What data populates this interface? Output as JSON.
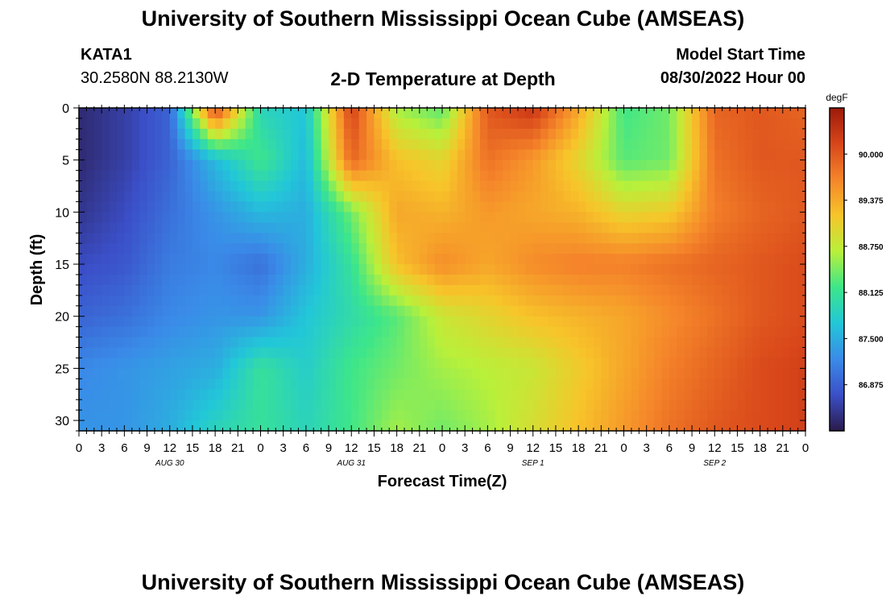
{
  "header": {
    "title_top": "University of Southern Mississippi Ocean Cube (AMSEAS)",
    "title_bottom": "University of Southern Mississippi Ocean Cube (AMSEAS)",
    "station": "KATA1",
    "coords": "30.2580N  88.2130W",
    "subtitle": "2-D Temperature at Depth",
    "model_start_label": "Model Start Time",
    "model_start_value": "08/30/2022 Hour 00"
  },
  "chart_data": {
    "type": "heatmap",
    "title": "2-D Temperature at Depth",
    "xlabel": "Forecast Time(Z)",
    "ylabel": "Depth (ft)",
    "units": "degF",
    "x_hours": [
      0,
      6,
      12,
      18,
      24,
      30,
      36,
      42,
      48,
      54,
      60,
      66,
      72,
      78,
      84,
      90,
      96
    ],
    "y_depths": [
      0,
      5,
      10,
      15,
      20,
      25,
      31
    ],
    "z": [
      [
        86.4,
        86.6,
        86.9,
        90.2,
        87.9,
        87.7,
        90.2,
        88.6,
        88.3,
        90.0,
        90.3,
        89.4,
        88.2,
        88.4,
        89.9,
        90.0,
        89.9
      ],
      [
        86.4,
        86.6,
        86.9,
        87.6,
        88.2,
        87.6,
        89.9,
        89.2,
        89.0,
        89.8,
        89.5,
        89.0,
        88.3,
        88.4,
        89.8,
        90.0,
        90.0
      ],
      [
        86.5,
        86.7,
        87.0,
        87.3,
        87.6,
        87.5,
        88.4,
        89.4,
        89.3,
        89.5,
        89.4,
        89.3,
        89.0,
        89.1,
        89.7,
        89.9,
        90.0
      ],
      [
        86.7,
        86.8,
        87.1,
        87.2,
        87.0,
        87.5,
        88.1,
        89.2,
        89.6,
        89.4,
        89.6,
        89.7,
        89.7,
        89.8,
        89.9,
        90.0,
        90.1
      ],
      [
        86.9,
        87.0,
        87.2,
        87.3,
        87.3,
        87.7,
        88.0,
        88.3,
        88.8,
        89.0,
        89.2,
        89.3,
        89.4,
        89.6,
        89.8,
        90.0,
        90.1
      ],
      [
        87.2,
        87.3,
        87.4,
        87.5,
        88.1,
        87.8,
        88.2,
        88.4,
        88.6,
        88.7,
        88.8,
        89.1,
        89.4,
        89.7,
        89.9,
        90.1,
        90.2
      ],
      [
        87.3,
        87.3,
        87.5,
        87.9,
        88.1,
        87.9,
        88.2,
        88.6,
        88.4,
        88.6,
        88.9,
        89.2,
        89.5,
        89.8,
        90.0,
        90.1,
        90.2
      ]
    ],
    "xlim": [
      0,
      96
    ],
    "ylim": [
      31,
      0
    ],
    "x_tick_labels": [
      "0",
      "3",
      "6",
      "9",
      "12",
      "15",
      "18",
      "21",
      "0",
      "3",
      "6",
      "9",
      "12",
      "15",
      "18",
      "21",
      "0",
      "3",
      "6",
      "9",
      "12",
      "15",
      "18",
      "21",
      "0",
      "3",
      "6",
      "9",
      "12",
      "15",
      "18",
      "21",
      "0"
    ],
    "date_labels": [
      "AUG 30",
      "AUG 31",
      "SEP 1",
      "SEP 2"
    ],
    "y_ticks": [
      0,
      5,
      10,
      15,
      20,
      25,
      30
    ],
    "colorbar": {
      "label": "degF",
      "min": 86.25,
      "max": 90.625,
      "ticks": [
        "90.000",
        "89.375",
        "88.750",
        "88.125",
        "87.500",
        "86.875"
      ],
      "colors": [
        "#2a1a4a",
        "#3b4fc8",
        "#3a8be8",
        "#22c7d8",
        "#3de68a",
        "#b9f03a",
        "#f7c52a",
        "#f5852a",
        "#d8461a",
        "#9c1a0a"
      ]
    }
  }
}
